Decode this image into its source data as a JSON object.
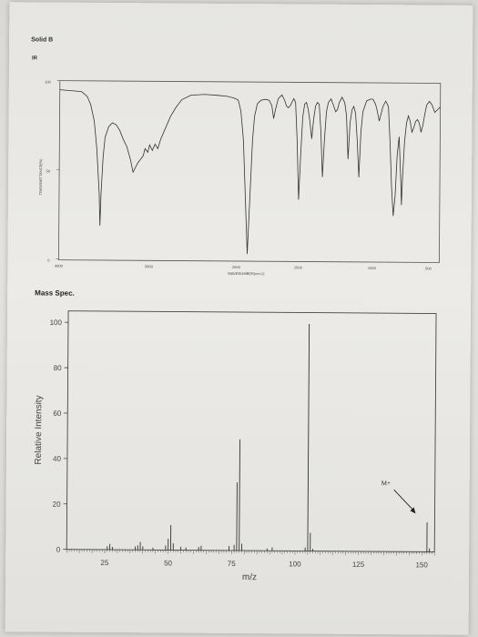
{
  "header": {
    "title": "Solid B",
    "ir_label": "IR",
    "ms_label": "Mass Spec."
  },
  "chart_data": [
    {
      "type": "line",
      "ylabel": "TRANSMITTANCE(%)",
      "xlabel": "WAVENUMBER(cm-1)",
      "x_ticks": [
        "4000",
        "3000",
        "2000",
        "1500",
        "1000",
        "500"
      ],
      "y_ticks": [
        "0",
        "50",
        "100"
      ],
      "grid": false
    },
    {
      "type": "bar",
      "xlabel": "m/z",
      "ylabel": "Relative Intensity",
      "x_ticks": [
        "25",
        "50",
        "75",
        "100",
        "125",
        "150"
      ],
      "y_ticks": [
        "0",
        "20",
        "40",
        "60",
        "80",
        "100"
      ],
      "xlim": [
        10,
        155
      ],
      "ylim": [
        0,
        105
      ],
      "annotation": "M+",
      "peaks": [
        {
          "mz": 26,
          "value": 1.5
        },
        {
          "mz": 27,
          "value": 2.5
        },
        {
          "mz": 28,
          "value": 1.2
        },
        {
          "mz": 37,
          "value": 1.5
        },
        {
          "mz": 38,
          "value": 2
        },
        {
          "mz": 39,
          "value": 3.5
        },
        {
          "mz": 40,
          "value": 1.5
        },
        {
          "mz": 44,
          "value": 1
        },
        {
          "mz": 49,
          "value": 2
        },
        {
          "mz": 50,
          "value": 5
        },
        {
          "mz": 51,
          "value": 11
        },
        {
          "mz": 52,
          "value": 3
        },
        {
          "mz": 55,
          "value": 1.5
        },
        {
          "mz": 57,
          "value": 1.2
        },
        {
          "mz": 62,
          "value": 1.5
        },
        {
          "mz": 63,
          "value": 2
        },
        {
          "mz": 74,
          "value": 2
        },
        {
          "mz": 76,
          "value": 2.5
        },
        {
          "mz": 77,
          "value": 30
        },
        {
          "mz": 78,
          "value": 49
        },
        {
          "mz": 79,
          "value": 3
        },
        {
          "mz": 89,
          "value": 1
        },
        {
          "mz": 91,
          "value": 1.5
        },
        {
          "mz": 104,
          "value": 1.5
        },
        {
          "mz": 105,
          "value": 100
        },
        {
          "mz": 106,
          "value": 8
        },
        {
          "mz": 107,
          "value": 1
        },
        {
          "mz": 152,
          "value": 13
        },
        {
          "mz": 153,
          "value": 1.5
        }
      ]
    }
  ]
}
